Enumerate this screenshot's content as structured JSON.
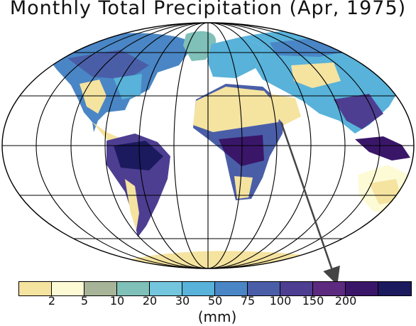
{
  "title": "Monthly Total Precipitation (Apr, 1975)",
  "legend": {
    "unit_label": "(mm)",
    "ticks": [
      "2",
      "5",
      "10",
      "20",
      "30",
      "50",
      "75",
      "100",
      "150",
      "200"
    ],
    "colors": [
      "#f5e3a0",
      "#fdfbd6",
      "#a8b497",
      "#7fc0b8",
      "#73c6dd",
      "#58b2da",
      "#4a86c5",
      "#4a5ea8",
      "#4d3e92",
      "#5c2a7e",
      "#3a1669",
      "#1c1a5e"
    ]
  },
  "map": {
    "projection": "Mollweide",
    "ocean_color": "#ffffff",
    "grid_color": "#000000",
    "annotation": "arrow from the Arabian Peninsula to the 150 color bin"
  }
}
